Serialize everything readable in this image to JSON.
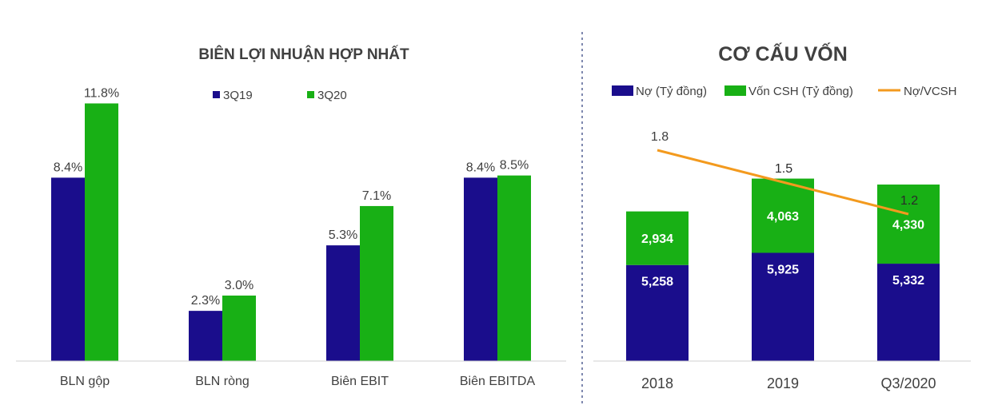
{
  "chart_data": [
    {
      "type": "bar",
      "title": "BIÊN LỢI NHUẬN  HỢP NHẤT",
      "categories": [
        "BLN gộp",
        "BLN ròng",
        "Biên EBIT",
        "Biên EBITDA"
      ],
      "series": [
        {
          "name": "3Q19",
          "values": [
            8.4,
            2.3,
            5.3,
            8.4
          ],
          "labels": [
            "8.4%",
            "2.3%",
            "5.3%",
            "8.4%"
          ],
          "color": "#1a0d8c"
        },
        {
          "name": "3Q20",
          "values": [
            11.8,
            3.0,
            7.1,
            8.5
          ],
          "labels": [
            "11.8%",
            "3.0%",
            "7.1%",
            "8.5%"
          ],
          "color": "#18b015"
        }
      ],
      "ylim": [
        0,
        15
      ],
      "legend": "top",
      "grid": false
    },
    {
      "type": "bar",
      "stacked": true,
      "title": "CƠ CẤU VỐN",
      "categories": [
        "2018",
        "2019",
        "Q3/2020"
      ],
      "series": [
        {
          "name": "Nợ (Tỷ đồng)",
          "values": [
            5258,
            5925,
            5332
          ],
          "labels": [
            "5,258",
            "5,925",
            "5,332"
          ],
          "color": "#1a0d8c"
        },
        {
          "name": "Vốn CSH (Tỷ đồng)",
          "values": [
            2934,
            4063,
            4330
          ],
          "labels": [
            "2,934",
            "4,063",
            "4,330"
          ],
          "color": "#18b015"
        }
      ],
      "line": {
        "name": "Nợ/VCSH",
        "values": [
          1.8,
          1.5,
          1.2
        ],
        "labels": [
          "1.8",
          "1.5",
          "1.2"
        ],
        "color": "#f39a1e"
      },
      "ylim": [
        0,
        13000
      ],
      "legend": "top",
      "grid": false
    }
  ]
}
